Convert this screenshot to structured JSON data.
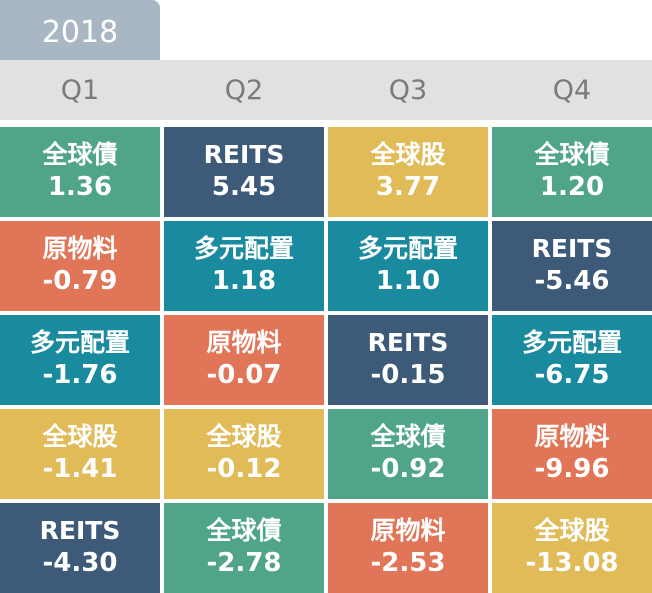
{
  "year": "2018",
  "quarters": [
    "Q1",
    "Q2",
    "Q3",
    "Q4"
  ],
  "colors": {
    "全球債": "#4fa489",
    "REITS": "#3d5b78",
    "全球股": "#e0bb57",
    "原物料": "#e07558",
    "多元配置": "#1a8a9e",
    "year_tab_bg": "#a9b6c4",
    "header_bg": "#e1e1e1",
    "header_text": "#7a7a7a"
  },
  "grid": [
    [
      {
        "name": "全球債",
        "value": "1.36"
      },
      {
        "name": "REITS",
        "value": "5.45"
      },
      {
        "name": "全球股",
        "value": "3.77"
      },
      {
        "name": "全球債",
        "value": "1.20"
      }
    ],
    [
      {
        "name": "原物料",
        "value": "-0.79"
      },
      {
        "name": "多元配置",
        "value": "1.18"
      },
      {
        "name": "多元配置",
        "value": "1.10"
      },
      {
        "name": "REITS",
        "value": "-5.46"
      }
    ],
    [
      {
        "name": "多元配置",
        "value": "-1.76"
      },
      {
        "name": "原物料",
        "value": "-0.07"
      },
      {
        "name": "REITS",
        "value": "-0.15"
      },
      {
        "name": "多元配置",
        "value": "-6.75"
      }
    ],
    [
      {
        "name": "全球股",
        "value": "-1.41"
      },
      {
        "name": "全球股",
        "value": "-0.12"
      },
      {
        "name": "全球債",
        "value": "-0.92"
      },
      {
        "name": "原物料",
        "value": "-9.96"
      }
    ],
    [
      {
        "name": "REITS",
        "value": "-4.30"
      },
      {
        "name": "全球債",
        "value": "-2.78"
      },
      {
        "name": "原物料",
        "value": "-2.53"
      },
      {
        "name": "全球股",
        "value": "-13.08"
      }
    ]
  ]
}
